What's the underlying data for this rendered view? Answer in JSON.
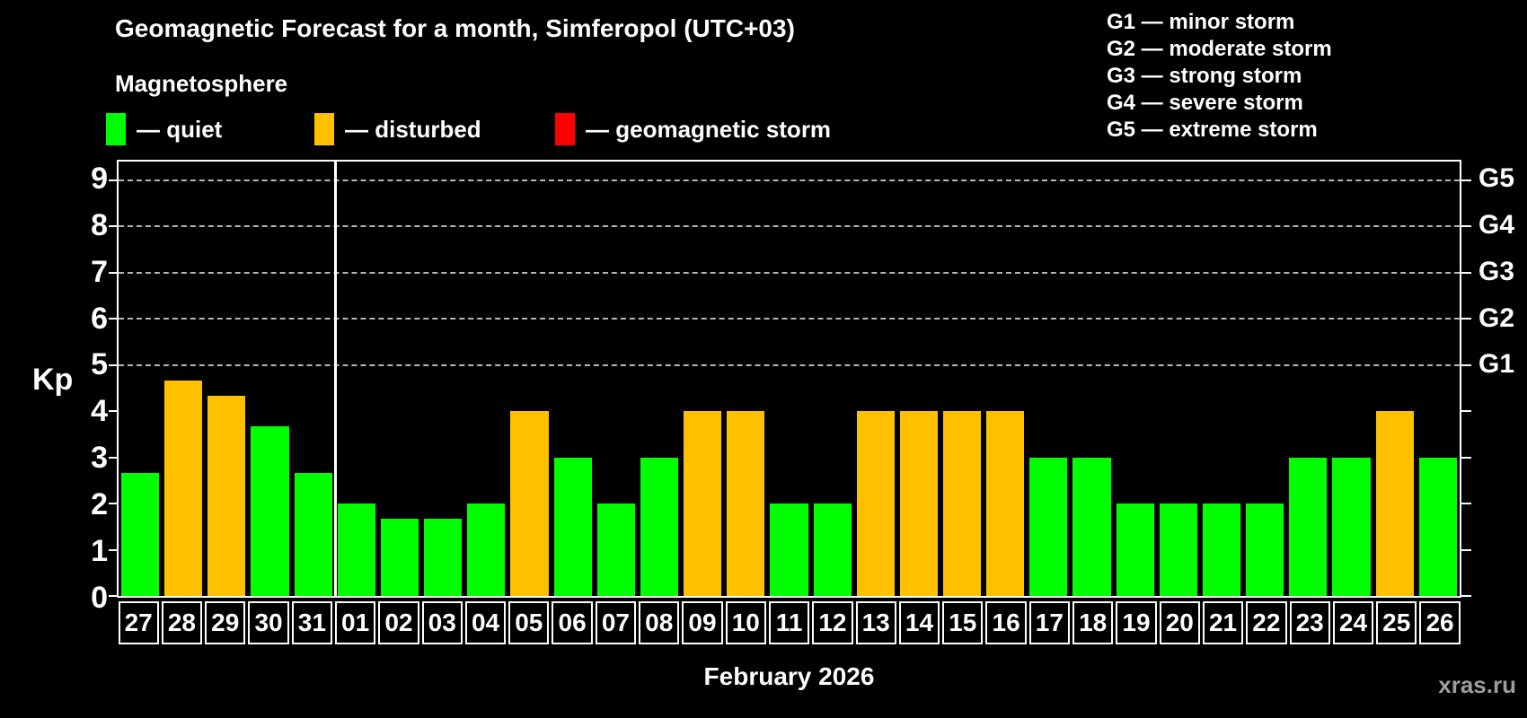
{
  "title": "Geomagnetic Forecast for a month, Simferopol (UTC+03)",
  "subtitle": "Magnetosphere",
  "legend": {
    "items": [
      {
        "key": "quiet",
        "label": "— quiet",
        "color": "#00ff00",
        "x": 118
      },
      {
        "key": "disturbed",
        "label": "— disturbed",
        "color": "#ffc000",
        "x": 350
      },
      {
        "key": "storm",
        "label": "— geomagnetic storm",
        "color": "#ff0000",
        "x": 618
      }
    ]
  },
  "storm_scale_legend": [
    "G1 — minor storm",
    "G2 — moderate storm",
    "G3 — strong storm",
    "G4 — severe storm",
    "G5 — extreme storm"
  ],
  "axis": {
    "y_label": "Kp",
    "y_ticks": [
      0,
      1,
      2,
      3,
      4,
      5,
      6,
      7,
      8,
      9
    ],
    "right_axis": [
      {
        "kp": 9,
        "label": "G5"
      },
      {
        "kp": 8,
        "label": "G4"
      },
      {
        "kp": 7,
        "label": "G3"
      },
      {
        "kp": 6,
        "label": "G2"
      },
      {
        "kp": 5,
        "label": "G1"
      }
    ],
    "x_label": "February 2026"
  },
  "watermark": "xras.ru",
  "chart_data": {
    "type": "bar",
    "title": "Geomagnetic Forecast for a month, Simferopol (UTC+03)",
    "xlabel": "February 2026",
    "ylabel": "Kp",
    "ylim": [
      0,
      9.4
    ],
    "grid": "dashed horizontal at Kp 5-9 only",
    "legend_position": "top-left",
    "gridlines_kp": [
      5,
      6,
      7,
      8,
      9
    ],
    "month_separator_after_index": 4,
    "state_colors": {
      "quiet": "#00ff00",
      "disturbed": "#ffc000",
      "storm": "#ff0000"
    },
    "categories": [
      "27",
      "28",
      "29",
      "30",
      "31",
      "01",
      "02",
      "03",
      "04",
      "05",
      "06",
      "07",
      "08",
      "09",
      "10",
      "11",
      "12",
      "13",
      "14",
      "15",
      "16",
      "17",
      "18",
      "19",
      "20",
      "21",
      "22",
      "23",
      "24",
      "25",
      "26"
    ],
    "values": [
      2.67,
      4.67,
      4.33,
      3.67,
      2.67,
      2,
      1.67,
      1.67,
      2,
      4,
      3,
      2,
      3,
      4,
      4,
      2,
      2,
      4,
      4,
      4,
      4,
      3,
      3,
      2,
      2,
      2,
      2,
      3,
      3,
      4,
      3
    ],
    "states": [
      "quiet",
      "disturbed",
      "disturbed",
      "quiet",
      "quiet",
      "quiet",
      "quiet",
      "quiet",
      "quiet",
      "disturbed",
      "quiet",
      "quiet",
      "quiet",
      "disturbed",
      "disturbed",
      "quiet",
      "quiet",
      "disturbed",
      "disturbed",
      "disturbed",
      "disturbed",
      "quiet",
      "quiet",
      "quiet",
      "quiet",
      "quiet",
      "quiet",
      "quiet",
      "quiet",
      "disturbed",
      "quiet"
    ]
  }
}
